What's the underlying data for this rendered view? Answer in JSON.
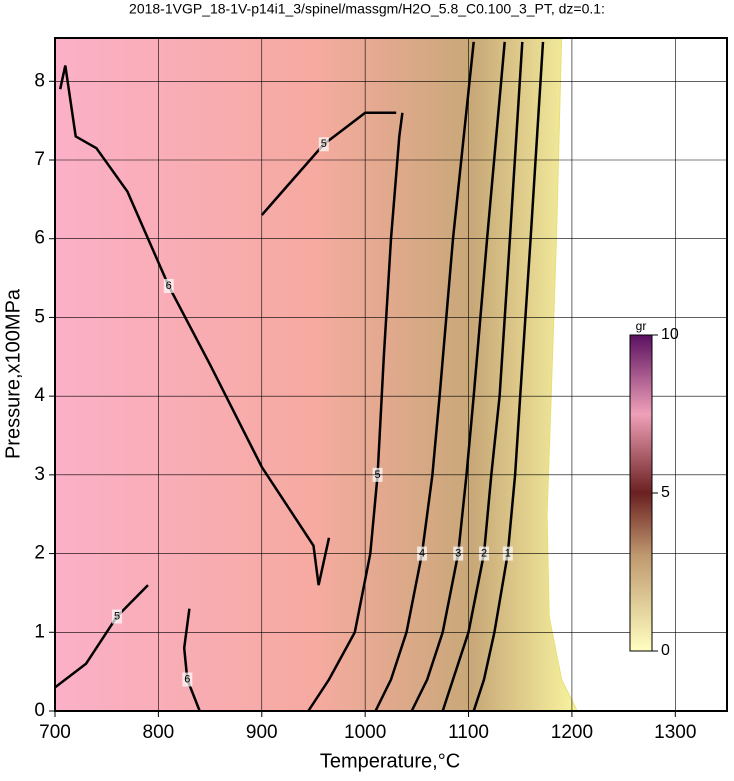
{
  "chart_data": {
    "type": "contour",
    "title": "2018-1VGP_18-1V-p14i1_3/spinel/massgm/H2O_5.8_C0.100_3_PT, dz=0.1:",
    "x_label": "Temperature,°C",
    "y_label": "Pressure,x100MPa",
    "xlim": [
      700,
      1350
    ],
    "ylim": [
      0,
      8.55
    ],
    "xticks": [
      700,
      800,
      900,
      1000,
      1100,
      1200,
      1300
    ],
    "yticks": [
      0,
      1,
      2,
      3,
      4,
      5,
      6,
      7,
      8
    ],
    "grid": true,
    "contours": [
      {
        "level": 0,
        "x": [
          1190,
          1185,
          1180,
          1176,
          1178,
          1190,
          1205
        ],
        "y": [
          8.55,
          6,
          4,
          2.5,
          1.2,
          0.4,
          0
        ]
      },
      {
        "level": 1,
        "x": [
          1172,
          1160,
          1150,
          1145,
          1138,
          1125,
          1115,
          1105
        ],
        "y": [
          8.5,
          6,
          4,
          3,
          2,
          1,
          0.4,
          0
        ]
      },
      {
        "level": 2,
        "x": [
          1152,
          1140,
          1130,
          1122,
          1115,
          1100,
          1085,
          1075
        ],
        "y": [
          8.5,
          6,
          4,
          3,
          2,
          1,
          0.4,
          0
        ]
      },
      {
        "level": 3,
        "x": [
          1135,
          1118,
          1105,
          1098,
          1090,
          1075,
          1060,
          1045
        ],
        "y": [
          8.5,
          6,
          4,
          3,
          2,
          1,
          0.4,
          0
        ]
      },
      {
        "level": 4,
        "x": [
          1105,
          1085,
          1072,
          1065,
          1055,
          1040,
          1025,
          1010
        ],
        "y": [
          8.5,
          6,
          4,
          3,
          2,
          1,
          0.4,
          0
        ]
      },
      {
        "level": 5,
        "x": [
          1036,
          1033,
          1025,
          1018,
          1012,
          1005,
          990,
          965,
          945
        ],
        "y": [
          7.6,
          7.3,
          6,
          4.5,
          3,
          2,
          1,
          0.4,
          0
        ]
      },
      {
        "level": 5,
        "x": [
          900,
          920,
          960,
          1000,
          1030
        ],
        "y": [
          6.3,
          6.6,
          7.2,
          7.6,
          7.6
        ]
      },
      {
        "level": 6,
        "x": [
          705,
          710,
          720,
          740,
          770,
          810,
          850,
          900,
          950,
          955,
          965
        ],
        "y": [
          7.9,
          8.2,
          7.3,
          7.15,
          6.6,
          5.4,
          4.4,
          3.1,
          2.1,
          1.6,
          2.2
        ]
      },
      {
        "level": 5,
        "x": [
          700,
          730,
          760,
          790
        ],
        "y": [
          0.3,
          0.6,
          1.2,
          1.6
        ]
      },
      {
        "level": 6,
        "x": [
          830,
          825,
          828,
          840
        ],
        "y": [
          1.3,
          0.8,
          0.4,
          0
        ]
      }
    ],
    "colorbar": {
      "label": "gr",
      "lim": [
        0,
        10
      ],
      "ticks": [
        0,
        5,
        10
      ]
    }
  }
}
